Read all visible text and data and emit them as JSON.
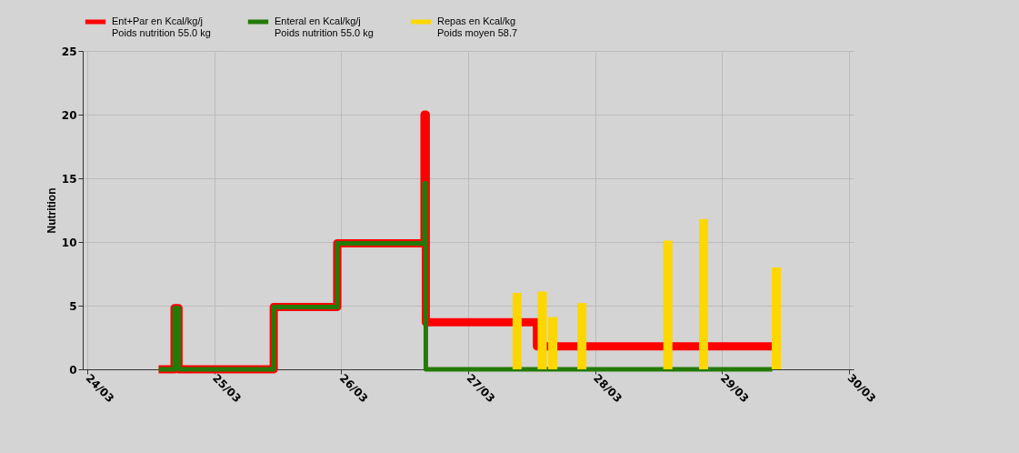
{
  "chart_data": {
    "type": "step",
    "ylabel": "Nutrition",
    "xlim": [
      "--03-24",
      "--03-30"
    ],
    "ylim": [
      0,
      25
    ],
    "xticks": [
      {
        "value": "--03-24",
        "label": "24/03"
      },
      {
        "value": "--03-25",
        "label": "25/03"
      },
      {
        "value": "--03-26",
        "label": "26/03"
      },
      {
        "value": "--03-27",
        "label": "27/03"
      },
      {
        "value": "--03-28",
        "label": "28/03"
      },
      {
        "value": "--03-29",
        "label": "29/03"
      },
      {
        "value": "--03-30",
        "label": "30/03"
      }
    ],
    "yticks": [
      0,
      5,
      10,
      15,
      20,
      25
    ],
    "grid": true,
    "legend": "top",
    "line_style": "solid",
    "marker": "none",
    "series": [
      {
        "name": "Ent+Par en Kcal/kg/j\nPoids nutrition 55.0 kg",
        "color": "#ff0000",
        "x": [
          "--03-24T13:30",
          "--03-24T16:30",
          "--03-24T17:15",
          "--03-25T11:15",
          "--03-25T23:15",
          "--03-26T15:45",
          "--03-26T16:00",
          "--03-27T13:00",
          "--03-29T09:30"
        ],
        "values": [
          0,
          4.8,
          0,
          4.9,
          9.9,
          20,
          3.7,
          1.8,
          1.8
        ]
      },
      {
        "name": "Enteral en Kcal/kg/j\nPoids nutrition 55.0 kg",
        "color": "#247a08",
        "x": [
          "--03-24T13:30",
          "--03-24T16:30",
          "--03-24T17:15",
          "--03-25T11:15",
          "--03-25T23:15",
          "--03-26T15:45",
          "--03-26T16:00",
          "--03-29T09:30"
        ],
        "values": [
          0,
          4.8,
          0,
          4.9,
          9.9,
          14.6,
          0,
          0
        ]
      },
      {
        "name": "Repas en Kcal/kg\nPoids moyen 58.7",
        "color": "#ffd700",
        "type": "bar",
        "x": [
          "--03-27T09:15",
          "--03-27T14:00",
          "--03-27T16:00",
          "--03-27T21:30",
          "--03-28T13:45",
          "--03-28T20:30",
          "--03-29T10:15"
        ],
        "values": [
          6.0,
          6.1,
          4.1,
          5.2,
          10.1,
          11.8,
          8.0
        ]
      }
    ]
  }
}
